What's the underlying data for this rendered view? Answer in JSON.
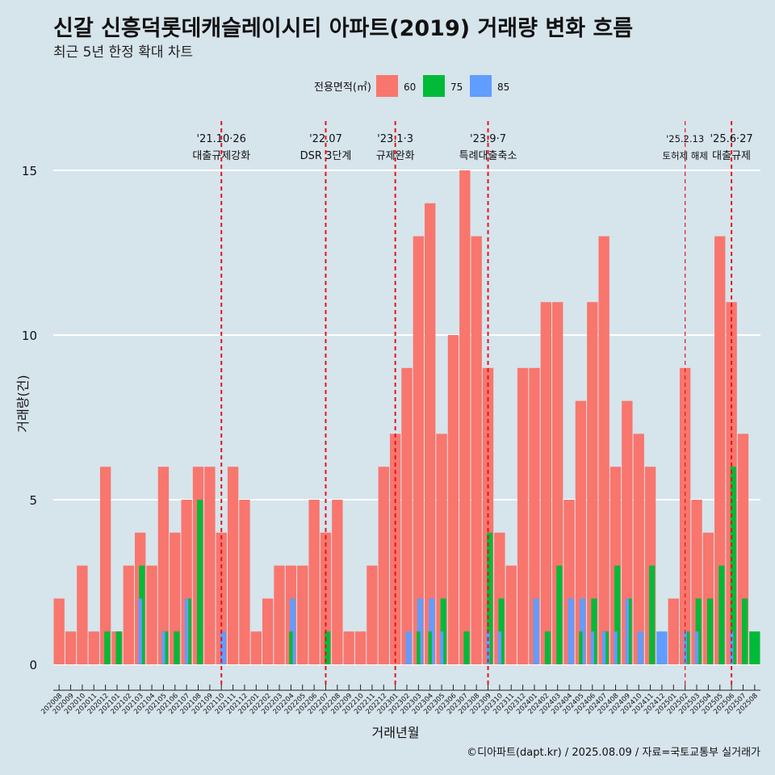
{
  "chart_data": {
    "type": "bar",
    "title": "신갈 신흥덕롯데캐슬레이시티 아파트(2019) 거래량 변화 흐름",
    "subtitle": "최근 5년 한정 확대 차트",
    "xlabel": "거래년월",
    "ylabel": "거래량(건)",
    "legend_title": "전용면적(㎡)",
    "legend_position": "top",
    "ylim": [
      0,
      16
    ],
    "y_ticks": [
      0,
      5,
      10,
      15
    ],
    "grid": "horizontal",
    "caption": "©디아파트(dapt.kr) / 2025.08.09 / 자료=국토교통부 실거래가",
    "categories": [
      "202008",
      "202009",
      "202010",
      "202011",
      "202012",
      "202101",
      "202102",
      "202103",
      "202104",
      "202105",
      "202106",
      "202107",
      "202108",
      "202109",
      "202110",
      "202111",
      "202112",
      "202201",
      "202202",
      "202203",
      "202204",
      "202205",
      "202206",
      "202207",
      "202208",
      "202209",
      "202210",
      "202211",
      "202212",
      "202301",
      "202302",
      "202303",
      "202304",
      "202305",
      "202306",
      "202307",
      "202308",
      "202309",
      "202310",
      "202311",
      "202312",
      "202401",
      "202402",
      "202403",
      "202404",
      "202405",
      "202406",
      "202407",
      "202408",
      "202409",
      "202410",
      "202411",
      "202412",
      "202501",
      "202502",
      "202503",
      "202504",
      "202505",
      "202506",
      "202507",
      "202508"
    ],
    "series": [
      {
        "name": "60",
        "color": "#f8766d",
        "values": [
          2,
          1,
          3,
          1,
          6,
          1,
          3,
          4,
          3,
          6,
          4,
          5,
          6,
          6,
          4,
          6,
          5,
          1,
          2,
          3,
          3,
          3,
          5,
          4,
          5,
          1,
          1,
          3,
          6,
          7,
          9,
          13,
          14,
          7,
          10,
          15,
          13,
          9,
          4,
          3,
          9,
          9,
          11,
          11,
          5,
          8,
          11,
          13,
          6,
          8,
          7,
          6,
          0,
          2,
          9,
          5,
          4,
          13,
          11,
          7,
          0
        ]
      },
      {
        "name": "75",
        "color": "#00ba38",
        "values": [
          0,
          0,
          0,
          0,
          1,
          1,
          0,
          3,
          0,
          1,
          1,
          2,
          5,
          0,
          0,
          0,
          0,
          0,
          0,
          0,
          1,
          0,
          0,
          1,
          0,
          0,
          0,
          0,
          0,
          0,
          0,
          1,
          1,
          2,
          0,
          1,
          0,
          4,
          2,
          0,
          0,
          0,
          1,
          3,
          0,
          1,
          2,
          1,
          3,
          2,
          0,
          3,
          0,
          0,
          1,
          2,
          2,
          3,
          6,
          2,
          1
        ]
      },
      {
        "name": "85",
        "color": "#619cff",
        "values": [
          0,
          0,
          0,
          0,
          0,
          0,
          0,
          2,
          0,
          1,
          0,
          2,
          0,
          0,
          1,
          0,
          0,
          0,
          0,
          0,
          2,
          0,
          0,
          0,
          0,
          0,
          0,
          0,
          0,
          0,
          1,
          2,
          2,
          1,
          0,
          0,
          0,
          1,
          1,
          0,
          0,
          2,
          0,
          0,
          2,
          2,
          1,
          1,
          1,
          2,
          1,
          0,
          1,
          0,
          1,
          1,
          0,
          0,
          1,
          0,
          0
        ]
      }
    ],
    "events": [
      {
        "at": "202110",
        "date": "'21.10·26",
        "label": "대출규제강화",
        "style": "thick"
      },
      {
        "at": "202207",
        "date": "'22.07",
        "label": "DSR 3단계",
        "style": "thick"
      },
      {
        "at": "202301",
        "date": "'23.1·3",
        "label": "규제완화",
        "style": "thick"
      },
      {
        "at": "202309",
        "date": "'23.9·7",
        "label": "특례대출축소",
        "style": "thick"
      },
      {
        "at": "202502",
        "date": "'25.2.13",
        "label": "토허제 해제",
        "style": "thin"
      },
      {
        "at": "202506",
        "date": "'25.6·27",
        "label": "대출규제",
        "style": "thick"
      }
    ]
  }
}
